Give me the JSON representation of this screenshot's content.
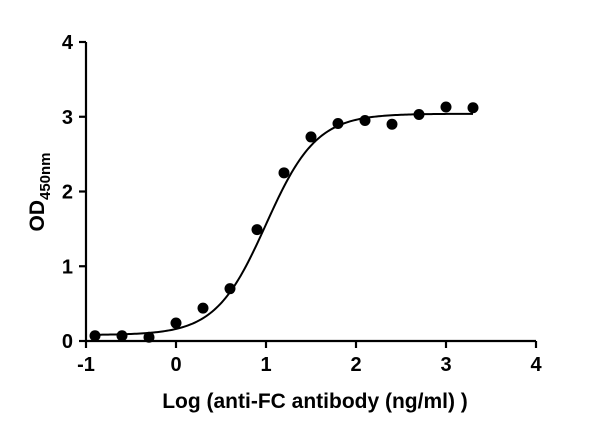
{
  "chart_data": {
    "type": "scatter",
    "xlabel": "Log (anti-FC antibody (ng/ml) )",
    "ylabel_main": "OD",
    "ylabel_sub": "450nm",
    "xlim": [
      -1,
      4
    ],
    "ylim": [
      0,
      4
    ],
    "xticks": [
      "-1",
      "0",
      "1",
      "2",
      "3",
      "4"
    ],
    "yticks": [
      "0",
      "1",
      "2",
      "3",
      "4"
    ],
    "grid": false,
    "legend": "none",
    "points": [
      {
        "x": -0.9,
        "y": 0.07
      },
      {
        "x": -0.6,
        "y": 0.07
      },
      {
        "x": -0.3,
        "y": 0.05
      },
      {
        "x": 0.0,
        "y": 0.24
      },
      {
        "x": 0.3,
        "y": 0.44
      },
      {
        "x": 0.6,
        "y": 0.7
      },
      {
        "x": 0.9,
        "y": 1.49
      },
      {
        "x": 1.2,
        "y": 2.25
      },
      {
        "x": 1.5,
        "y": 2.73
      },
      {
        "x": 1.8,
        "y": 2.91
      },
      {
        "x": 2.1,
        "y": 2.95
      },
      {
        "x": 2.4,
        "y": 2.9
      },
      {
        "x": 2.7,
        "y": 3.03
      },
      {
        "x": 3.0,
        "y": 3.13
      },
      {
        "x": 3.3,
        "y": 3.12
      }
    ],
    "fit_curve": {
      "model": "4PL",
      "bottom": 0.08,
      "top": 3.04,
      "logEC50": 1.0,
      "hill": 1.55,
      "x_range": [
        -0.9,
        3.3
      ]
    }
  }
}
